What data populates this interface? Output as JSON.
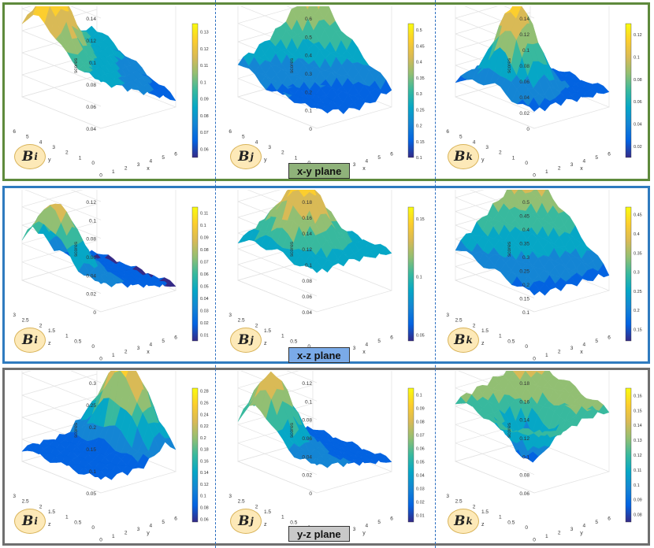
{
  "chart_data": [
    {
      "type": "surface",
      "panel": "x-y plane",
      "badge": {
        "letter": "B",
        "sub": "i"
      },
      "zlabel": "scores",
      "xlabel": "x",
      "ylabel": "y",
      "zticks": [
        "0.04",
        "0.06",
        "0.08",
        "0.1",
        "0.12",
        "0.14"
      ],
      "xticks": [
        "0",
        "1",
        "2",
        "3",
        "4",
        "5",
        "6"
      ],
      "yticks": [
        "0",
        "1",
        "2",
        "3",
        "4",
        "5",
        "6"
      ],
      "colorbar": {
        "min": 0.055,
        "max": 0.135,
        "ticks": [
          "0.06",
          "0.07",
          "0.08",
          "0.09",
          "0.1",
          "0.11",
          "0.12",
          "0.13"
        ]
      }
    },
    {
      "type": "surface",
      "panel": "x-y plane",
      "badge": {
        "letter": "B",
        "sub": "j"
      },
      "zlabel": "scores",
      "xlabel": "x",
      "ylabel": "y",
      "zticks": [
        "0",
        "0.1",
        "0.2",
        "0.3",
        "0.4",
        "0.5",
        "0.6"
      ],
      "xticks": [
        "0",
        "1",
        "2",
        "3",
        "4",
        "5",
        "6"
      ],
      "yticks": [
        "0",
        "1",
        "2",
        "3",
        "4",
        "5",
        "6"
      ],
      "colorbar": {
        "min": 0.1,
        "max": 0.52,
        "ticks": [
          "0.1",
          "0.15",
          "0.2",
          "0.25",
          "0.3",
          "0.35",
          "0.4",
          "0.45",
          "0.5"
        ]
      }
    },
    {
      "type": "surface",
      "panel": "x-y plane",
      "badge": {
        "letter": "B",
        "sub": "k"
      },
      "zlabel": "scores",
      "xlabel": "x",
      "ylabel": "y",
      "zticks": [
        "0",
        "0.02",
        "0.04",
        "0.06",
        "0.08",
        "0.1",
        "0.12",
        "0.14"
      ],
      "xticks": [
        "0",
        "1",
        "2",
        "3",
        "4",
        "5",
        "6"
      ],
      "yticks": [
        "0",
        "1",
        "2",
        "3",
        "4",
        "5",
        "6"
      ],
      "colorbar": {
        "min": 0.01,
        "max": 0.13,
        "ticks": [
          "0.02",
          "0.04",
          "0.06",
          "0.08",
          "0.1",
          "0.12"
        ]
      }
    },
    {
      "type": "surface",
      "panel": "x-z plane",
      "badge": {
        "letter": "B",
        "sub": "i"
      },
      "zlabel": "scores",
      "xlabel": "x",
      "ylabel": "z",
      "zticks": [
        "0",
        "0.02",
        "0.04",
        "0.06",
        "0.08",
        "0.1",
        "0.12"
      ],
      "xticks": [
        "0",
        "1",
        "2",
        "3",
        "4",
        "5",
        "6"
      ],
      "yticks": [
        "0",
        "0.5",
        "1",
        "1.5",
        "2",
        "2.5",
        "3"
      ],
      "colorbar": {
        "min": 0.005,
        "max": 0.115,
        "ticks": [
          "0.01",
          "0.02",
          "0.03",
          "0.04",
          "0.05",
          "0.06",
          "0.07",
          "0.08",
          "0.09",
          "0.1",
          "0.11"
        ]
      }
    },
    {
      "type": "surface",
      "panel": "x-z plane",
      "badge": {
        "letter": "B",
        "sub": "j"
      },
      "zlabel": "scores",
      "xlabel": "x",
      "ylabel": "z",
      "zticks": [
        "0.04",
        "0.06",
        "0.08",
        "0.1",
        "0.12",
        "0.14",
        "0.16",
        "0.18"
      ],
      "xticks": [
        "0",
        "1",
        "2",
        "3",
        "4",
        "5",
        "6"
      ],
      "yticks": [
        "0",
        "0.5",
        "1",
        "1.5",
        "2",
        "2.5",
        "3"
      ],
      "colorbar": {
        "min": 0.045,
        "max": 0.16,
        "ticks": [
          "0.05",
          "0.1",
          "0.15"
        ]
      }
    },
    {
      "type": "surface",
      "panel": "x-z plane",
      "badge": {
        "letter": "B",
        "sub": "k"
      },
      "zlabel": "scores",
      "xlabel": "x",
      "ylabel": "z",
      "zticks": [
        "0.1",
        "0.15",
        "0.2",
        "0.25",
        "0.3",
        "0.35",
        "0.4",
        "0.45",
        "0.5"
      ],
      "xticks": [
        "0",
        "1",
        "2",
        "3",
        "4",
        "5",
        "6"
      ],
      "yticks": [
        "0",
        "0.5",
        "1",
        "1.5",
        "2",
        "2.5",
        "3"
      ],
      "colorbar": {
        "min": 0.12,
        "max": 0.47,
        "ticks": [
          "0.15",
          "0.2",
          "0.25",
          "0.3",
          "0.35",
          "0.4",
          "0.45"
        ]
      }
    },
    {
      "type": "surface",
      "panel": "y-z plane",
      "badge": {
        "letter": "B",
        "sub": "i"
      },
      "zlabel": "scores",
      "xlabel": "y",
      "ylabel": "z",
      "zticks": [
        "0.05",
        "0.1",
        "0.15",
        "0.2",
        "0.25",
        "0.3"
      ],
      "xticks": [
        "0",
        "1",
        "2",
        "3",
        "4",
        "5",
        "6"
      ],
      "yticks": [
        "0",
        "0.5",
        "1",
        "1.5",
        "2",
        "2.5",
        "3"
      ],
      "colorbar": {
        "min": 0.055,
        "max": 0.285,
        "ticks": [
          "0.06",
          "0.08",
          "0.1",
          "0.12",
          "0.14",
          "0.16",
          "0.18",
          "0.2",
          "0.22",
          "0.24",
          "0.26",
          "0.28"
        ]
      }
    },
    {
      "type": "surface",
      "panel": "y-z plane",
      "badge": {
        "letter": "B",
        "sub": "j"
      },
      "zlabel": "scores",
      "xlabel": "y",
      "ylabel": "z",
      "zticks": [
        "0",
        "0.02",
        "0.04",
        "0.06",
        "0.08",
        "0.1",
        "0.12"
      ],
      "xticks": [
        "0",
        "1",
        "2",
        "3",
        "4",
        "5",
        "6"
      ],
      "yticks": [
        "0",
        "0.5",
        "1",
        "1.5",
        "2",
        "2.5",
        "3"
      ],
      "colorbar": {
        "min": 0.005,
        "max": 0.105,
        "ticks": [
          "0.01",
          "0.02",
          "0.03",
          "0.04",
          "0.05",
          "0.06",
          "0.07",
          "0.08",
          "0.09",
          "0.1"
        ]
      }
    },
    {
      "type": "surface",
      "panel": "y-z plane",
      "badge": {
        "letter": "B",
        "sub": "k"
      },
      "zlabel": "scores",
      "xlabel": "y",
      "ylabel": "z",
      "zticks": [
        "0.06",
        "0.08",
        "0.1",
        "0.12",
        "0.14",
        "0.16",
        "0.18"
      ],
      "xticks": [
        "0",
        "1",
        "2",
        "3",
        "4",
        "5",
        "6"
      ],
      "yticks": [
        "0",
        "0.5",
        "1",
        "1.5",
        "2",
        "2.5",
        "3"
      ],
      "colorbar": {
        "min": 0.075,
        "max": 0.165,
        "ticks": [
          "0.08",
          "0.09",
          "0.1",
          "0.11",
          "0.12",
          "0.13",
          "0.14",
          "0.15",
          "0.16"
        ]
      }
    }
  ],
  "planes": {
    "xy": "x-y plane",
    "xz": "x-z plane",
    "yz": "y-z plane"
  },
  "colors": {
    "xy_border": "#5e8a3c",
    "xz_border": "#2f7bbf",
    "yz_border": "#6f6f6f",
    "xy_label": "#8fb27a",
    "xz_label": "#7aaae8",
    "yz_label": "#c8c8c8"
  }
}
